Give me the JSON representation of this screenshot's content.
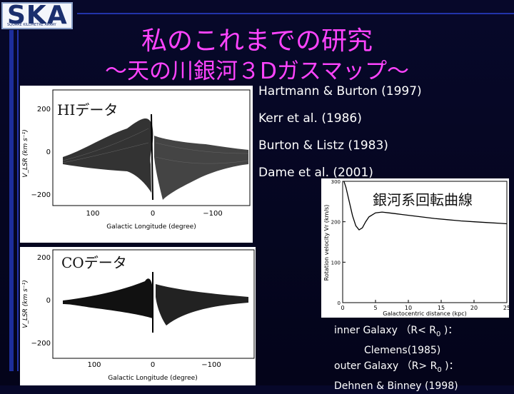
{
  "logo": {
    "text": "SKA",
    "subtext": "SQUARE KILOMETRE ARRAY"
  },
  "title": {
    "line1": "私のこれまでの研究",
    "line2": "～天の川銀河３Dガスマップ～"
  },
  "references": [
    "Hartmann & Burton (1997)",
    "Kerr et al. (1986)",
    "Burton & Listz (1983)",
    "Dame et al. (2001)"
  ],
  "hi_plot": {
    "label": "HIデータ",
    "ylabel": "V_LSR (km s⁻¹)",
    "xlabel": "Galactic Longitude (degree)",
    "yticks": [
      "200",
      "0",
      "−200"
    ],
    "xticks": [
      "100",
      "0",
      "−100"
    ]
  },
  "co_plot": {
    "label": "COデータ",
    "ylabel": "V_LSR (km s⁻¹)",
    "xlabel": "Galactic Longitude (degree)",
    "yticks": [
      "200",
      "0",
      "−200"
    ],
    "xticks": [
      "100",
      "0",
      "−100"
    ]
  },
  "chart_data": {
    "type": "line",
    "title": "銀河系回転曲線",
    "xlabel": "Galactocentric distance (kpc)",
    "ylabel": "Rotation velocity Vr (km/s)",
    "xlim": [
      0,
      25
    ],
    "ylim": [
      0,
      300
    ],
    "xticks": [
      "0",
      "5",
      "10",
      "15",
      "20",
      "25"
    ],
    "yticks": [
      "0",
      "100",
      "200",
      "300"
    ],
    "series": [
      {
        "x": [
          0.2,
          0.5,
          1,
          1.5,
          2,
          2.5,
          3,
          3.5,
          4,
          5,
          6,
          7,
          8,
          9,
          10,
          12,
          14,
          16,
          18,
          20,
          22,
          24,
          25
        ],
        "y": [
          300,
          285,
          250,
          215,
          190,
          180,
          185,
          200,
          212,
          222,
          224,
          222,
          220,
          218,
          216,
          212,
          208,
          205,
          202,
          200,
          198,
          196,
          195
        ]
      }
    ]
  },
  "notes": {
    "line1_pre": "inner Galaxy （R< R",
    "line1_sub": "0",
    "line1_post": " )：",
    "line2": "Clemens(1985)",
    "line3_pre": "outer Galaxy （R> R",
    "line3_sub": "0",
    "line3_post": " )：",
    "line4": "Dehnen & Binney (1998)"
  },
  "stray_text": "y"
}
